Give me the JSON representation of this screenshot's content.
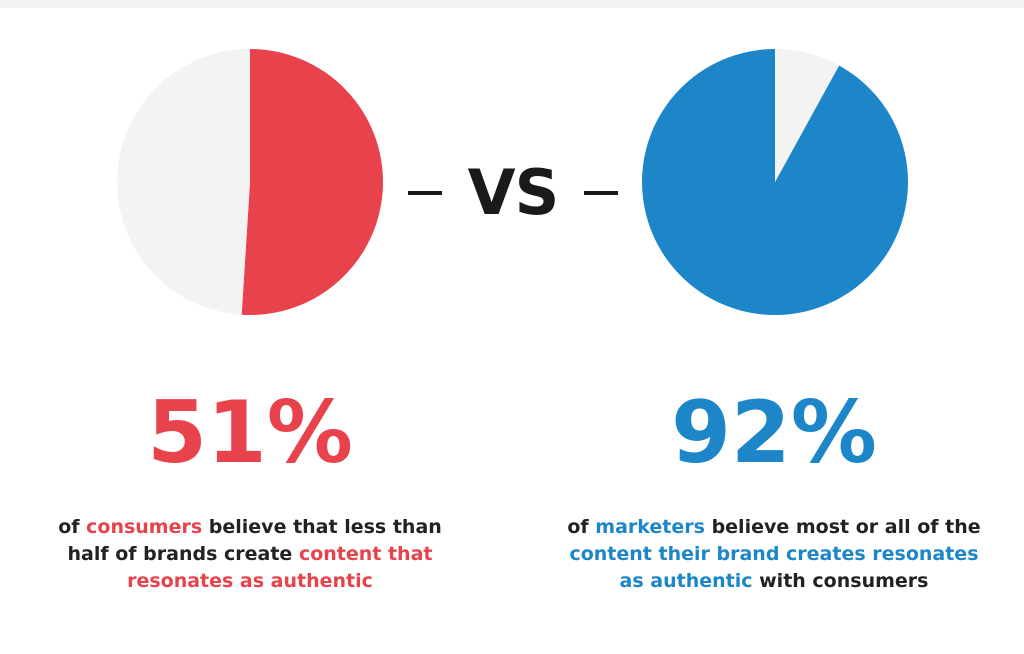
{
  "colors": {
    "consumers": "#e8434c",
    "marketers": "#1c86c9",
    "remainder": "#f3f3f3",
    "text": "#222222"
  },
  "divider": {
    "label": "VS"
  },
  "chart_data": [
    {
      "type": "pie",
      "slices": [
        {
          "label": "",
          "value": 51,
          "color": "#e8434c"
        },
        {
          "label": "",
          "value": 49,
          "color": "#f3f3f3"
        }
      ],
      "title": "",
      "legend": "none"
    },
    {
      "type": "pie",
      "slices": [
        {
          "label": "",
          "value": 92,
          "color": "#1c86c9"
        },
        {
          "label": "",
          "value": 8,
          "color": "#f3f3f3"
        }
      ],
      "title": "",
      "legend": "none"
    }
  ],
  "left": {
    "percent": "51%",
    "text": {
      "p1": "of ",
      "p2": "consumers",
      "p3": " believe that less than half of brands create ",
      "p4": "content that resonates as authentic"
    }
  },
  "right": {
    "percent": "92%",
    "text": {
      "p1": "of ",
      "p2": "marketers",
      "p3": " believe most or all of the ",
      "p4": "content their brand creates resonates as authentic",
      "p5": " with consumers"
    }
  }
}
